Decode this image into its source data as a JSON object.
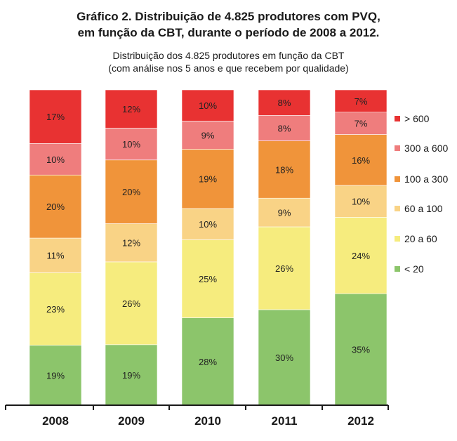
{
  "title_line1": "Gráfico 2. Distribuição de 4.825 produtores com PVQ,",
  "title_line2": "em função da CBT, durante o período de 2008 a 2012.",
  "subtitle_line1": "Distribuição dos 4.825 produtores em função da CBT",
  "subtitle_line2": "(com análise nos 5 anos e que recebem por qualidade)",
  "chart_data": {
    "type": "bar",
    "stacked": true,
    "percent_stacked": true,
    "categories": [
      "2008",
      "2009",
      "2010",
      "2011",
      "2012"
    ],
    "series": [
      {
        "name": "< 20",
        "color": "#8cc56b",
        "values": [
          19,
          19,
          28,
          30,
          35
        ]
      },
      {
        "name": "20 a 60",
        "color": "#f6ec7e",
        "values": [
          23,
          26,
          25,
          26,
          24
        ]
      },
      {
        "name": "60 a 100",
        "color": "#f9d386",
        "values": [
          11,
          12,
          10,
          9,
          10
        ]
      },
      {
        "name": "100 a 300",
        "color": "#f0943a",
        "values": [
          20,
          20,
          19,
          18,
          16
        ]
      },
      {
        "name": "300 a 600",
        "color": "#ef7d7d",
        "values": [
          10,
          10,
          9,
          8,
          7
        ]
      },
      {
        "name": "> 600",
        "color": "#e83232",
        "values": [
          17,
          12,
          10,
          8,
          7
        ]
      }
    ],
    "data_labels": [
      [
        "19%",
        "19%",
        "28%",
        "30%",
        "35%"
      ],
      [
        "23%",
        "26%",
        "25%",
        "26%",
        "24%"
      ],
      [
        "11%",
        "12%",
        "10%",
        "9%",
        "10%"
      ],
      [
        "20%",
        "20%",
        "19%",
        "18%",
        "16%"
      ],
      [
        "10%",
        "10%",
        "9%",
        "8%",
        "7%"
      ],
      [
        "17%",
        "12%",
        "10%",
        "8%",
        "7%"
      ]
    ],
    "legend_order": [
      "> 600",
      "300 a 600",
      "100 a 300",
      "60 a 100",
      "20 a 60",
      "< 20"
    ],
    "legend_position": "right",
    "ylim": [
      0,
      100
    ],
    "grid": false
  }
}
